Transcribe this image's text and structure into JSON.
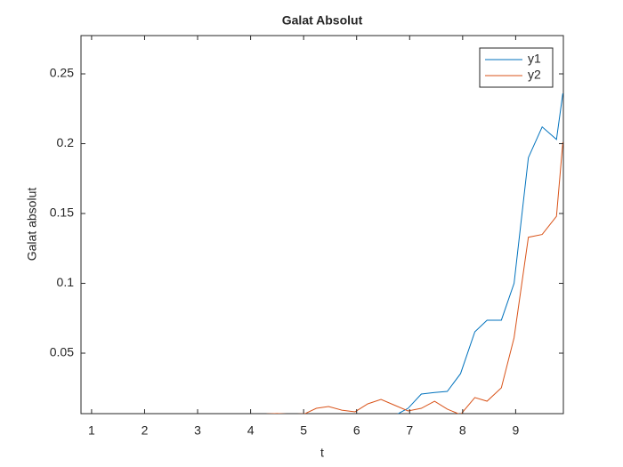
{
  "chart_data": {
    "type": "line",
    "title": "Galat Absolut",
    "x_label": "t",
    "y_label": "Galat absolut",
    "x": [
      4.3,
      4.5,
      4.76,
      5.02,
      5.24,
      5.47,
      5.72,
      5.97,
      6.21,
      6.46,
      6.7,
      6.97,
      7.22,
      7.47,
      7.71,
      7.96,
      8.23,
      8.46,
      8.73,
      8.97,
      9.24,
      9.5,
      9.77,
      9.89
    ],
    "series": [
      {
        "name": "y1",
        "color": "#0072bd",
        "values": [
          0.003,
          0.003,
          0.003,
          0.003,
          0.003,
          0.003,
          0.003,
          0.003,
          0.003,
          0.003,
          0.005,
          0.0105,
          0.0207,
          0.0218,
          0.0226,
          0.0353,
          0.0653,
          0.0736,
          0.0736,
          0.1,
          0.19,
          0.212,
          0.203,
          0.236
        ]
      },
      {
        "name": "y2",
        "color": "#d95319",
        "values": [
          0.0065,
          0.0068,
          0.0062,
          0.0066,
          0.0105,
          0.0118,
          0.0092,
          0.008,
          0.0137,
          0.0169,
          0.013,
          0.0086,
          0.0105,
          0.0156,
          0.0099,
          0.006,
          0.0182,
          0.0156,
          0.0252,
          0.061,
          0.133,
          0.135,
          0.148,
          0.201
        ]
      }
    ],
    "xlim": [
      0.8,
      9.9
    ],
    "xticks": [
      1,
      2,
      3,
      4,
      5,
      6,
      7,
      8,
      9
    ],
    "ylim": [
      0.0067,
      0.2774
    ],
    "yticks": [
      0.05,
      0.1,
      0.15,
      0.2,
      0.25
    ],
    "legend": "top-right",
    "grid": false
  }
}
